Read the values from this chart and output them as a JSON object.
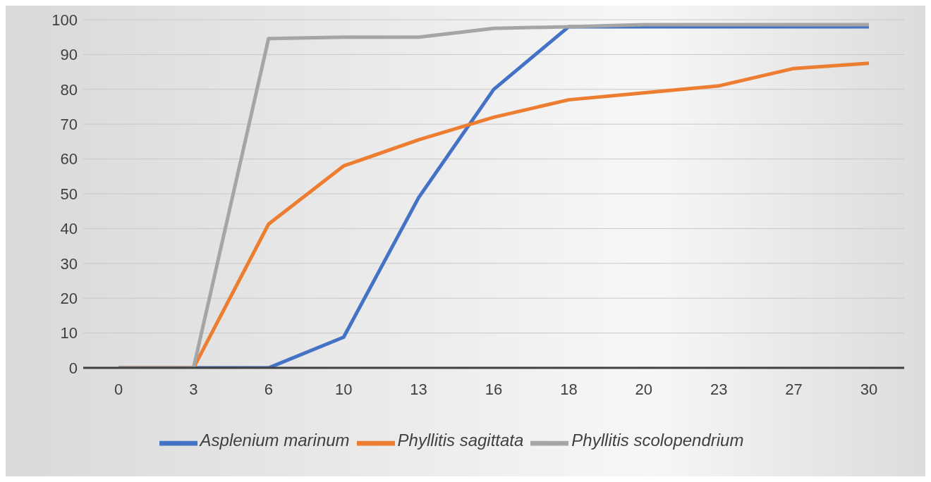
{
  "chart_data": {
    "type": "line",
    "categories": [
      "0",
      "3",
      "6",
      "10",
      "13",
      "16",
      "18",
      "20",
      "23",
      "27",
      "30"
    ],
    "series": [
      {
        "name": "Asplenium marinum",
        "color": "#4472c4",
        "values": [
          0,
          0,
          0,
          8.8,
          48.9,
          80,
          98,
          98,
          98,
          98,
          98
        ]
      },
      {
        "name": "Phyllitis sagittata",
        "color": "#ed7d31",
        "values": [
          0,
          0,
          41.3,
          58,
          65.5,
          72,
          77,
          79,
          81,
          86,
          87.5
        ]
      },
      {
        "name": "Phyllitis scolopendrium",
        "color": "#a5a5a5",
        "values": [
          0,
          0,
          94.6,
          95,
          95,
          97.5,
          98,
          98.6,
          98.6,
          98.6,
          98.6
        ]
      }
    ],
    "ylim": [
      0,
      100
    ],
    "yticks": [
      0,
      10,
      20,
      30,
      40,
      50,
      60,
      70,
      80,
      90,
      100
    ],
    "grid": "y",
    "legend": "bottom",
    "marker": "none",
    "line_style": "solid"
  }
}
